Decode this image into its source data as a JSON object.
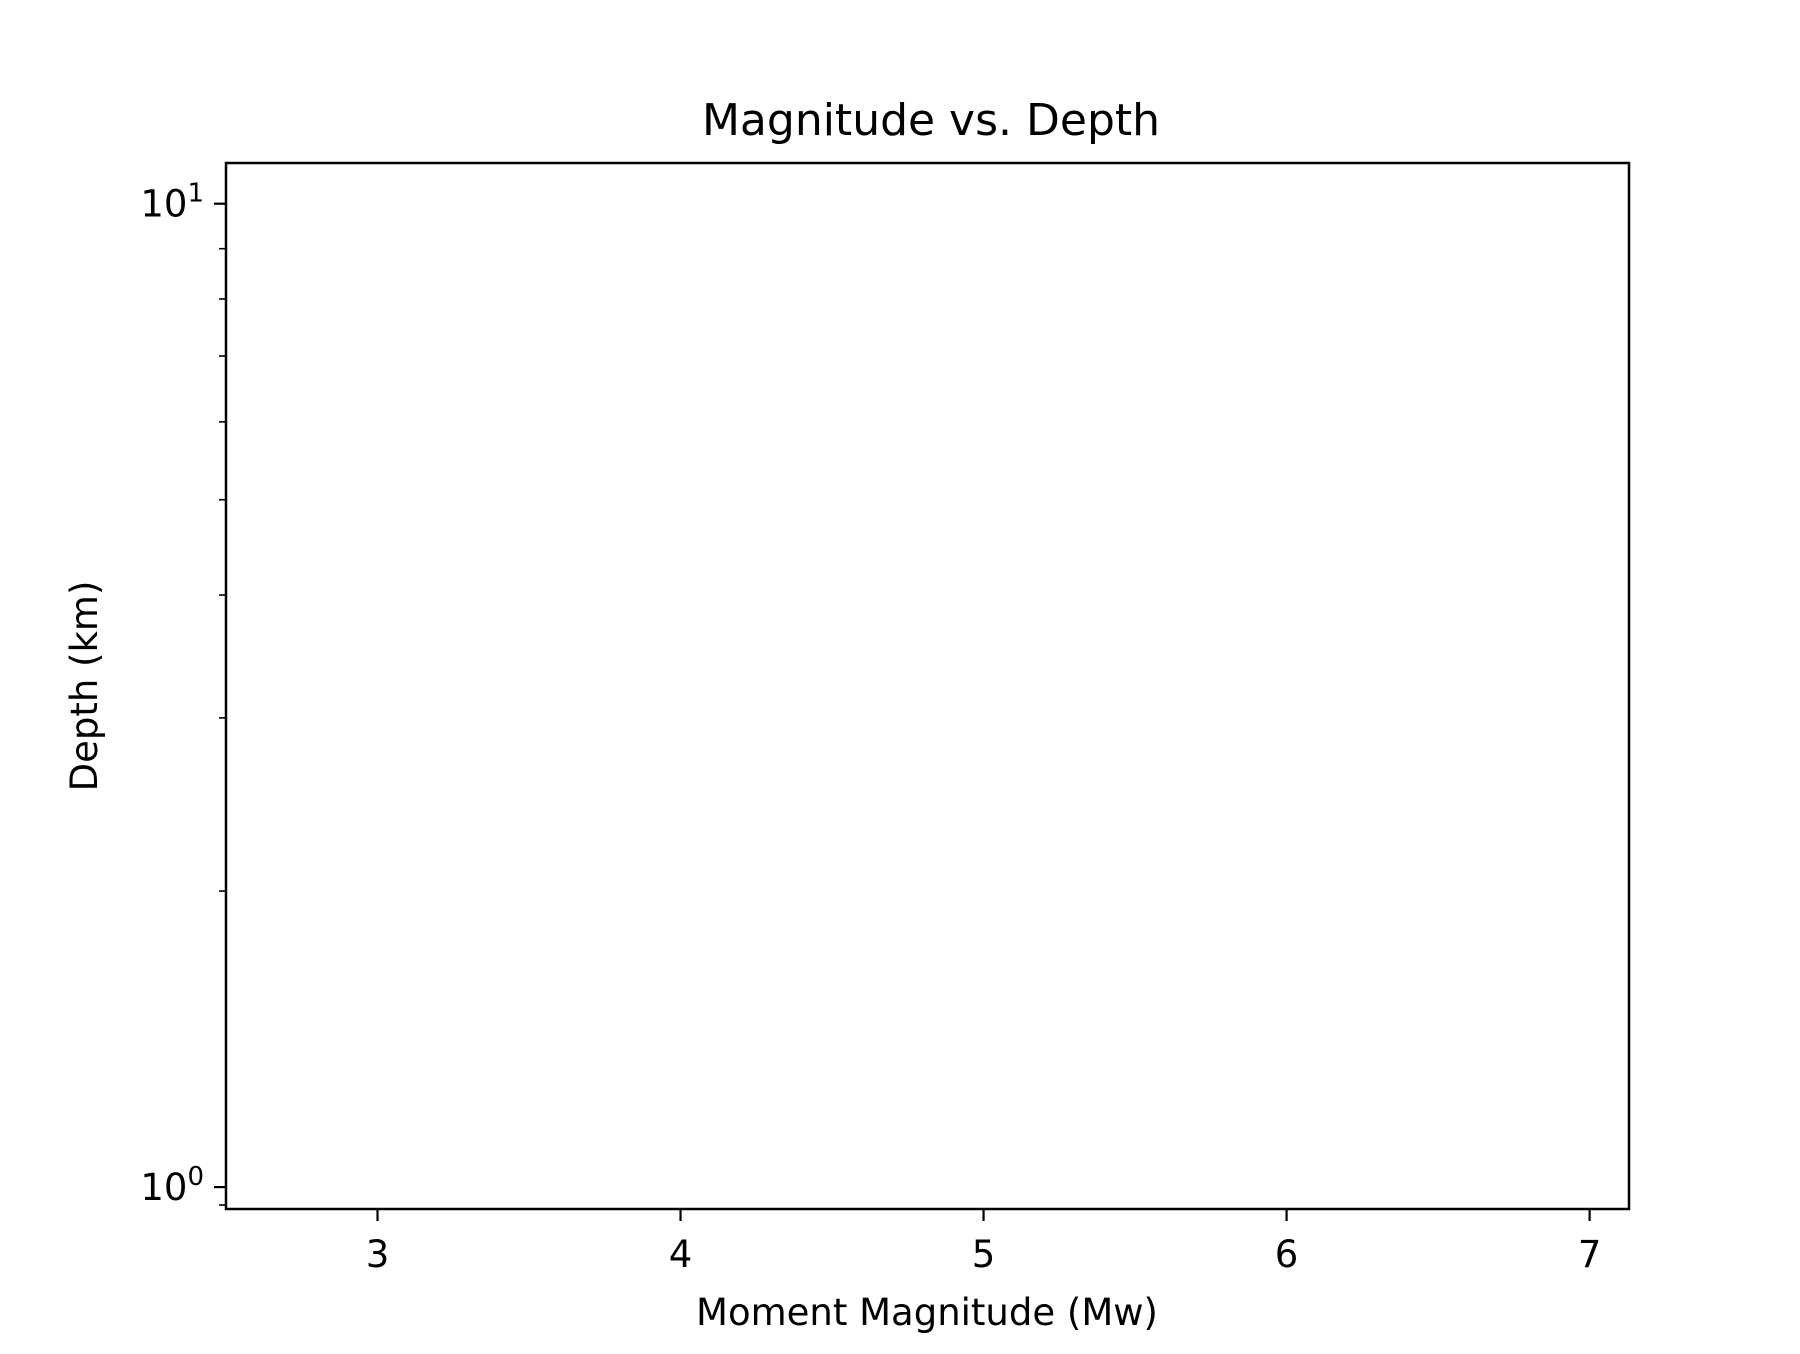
{
  "chart_data": {
    "type": "scatter",
    "title": "Magnitude vs. Depth",
    "xlabel": "Moment Magnitude (Mw)",
    "ylabel": "Depth (km)",
    "xlim": [
      2.5,
      7.13
    ],
    "ylim": [
      0.95,
      11.0
    ],
    "yscale": "log",
    "xticks": [
      3,
      4,
      5,
      6,
      7
    ],
    "xtick_labels": [
      "3",
      "4",
      "5",
      "6",
      "7"
    ],
    "yticks": [
      1,
      10
    ],
    "ytick_labels": [
      {
        "base": "10",
        "exp": "0"
      },
      {
        "base": "10",
        "exp": "1"
      }
    ],
    "yminor_ticks": [
      2,
      3,
      4,
      5,
      6,
      7,
      8,
      9
    ],
    "grid": false,
    "legend": "none",
    "series": [
      {
        "x": [],
        "y": []
      }
    ],
    "colors": {
      "axes": "#000000",
      "background": "#ffffff"
    }
  }
}
